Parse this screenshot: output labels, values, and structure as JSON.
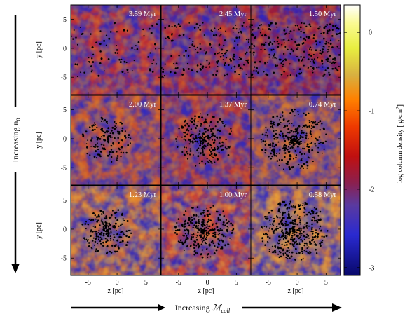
{
  "figure": {
    "axis_labels": {
      "y": "y [pc]",
      "z": "z [pc]"
    },
    "arrows": {
      "vertical": {
        "prefix": "Increasing n",
        "subscript": "0"
      },
      "horizontal": {
        "prefix": "Increasing ",
        "symbol": "ℳ",
        "subscript": "coll"
      }
    },
    "colorbar": {
      "label_main": "log column density [ g/cm",
      "label_sup": "2",
      "label_end": "]",
      "ticks": [
        "0",
        "-1",
        "-2",
        "-3"
      ],
      "tick_values": [
        0,
        -1,
        -2,
        -3
      ],
      "range": [
        -3.1,
        0.35
      ]
    },
    "x_ticks": [
      "-5",
      "0",
      "5"
    ],
    "y_ticks": [
      "5",
      "0",
      "-5"
    ],
    "tick_values": [
      -5,
      0,
      5
    ],
    "axis_range": [
      -8,
      7.5
    ],
    "rows": [
      {
        "times": [
          "3.59 Myr",
          "2.45 Myr",
          "1.50 Myr"
        ]
      },
      {
        "times": [
          "2.00 Myr",
          "1.37 Myr",
          "0.74 Myr"
        ]
      },
      {
        "times": [
          "1.23 Myr",
          "1.00 Myr",
          "0.58 Myr"
        ]
      }
    ]
  }
}
